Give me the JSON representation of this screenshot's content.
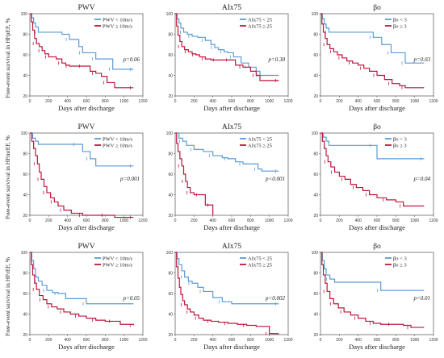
{
  "colors": {
    "blue": "#5b9bd5",
    "red": "#c0143c",
    "axis": "#666666"
  },
  "row_labels": [
    "Free-event survival in HFpEF, %",
    "Free-event survival in HFmrEF, %",
    "Free-event survival in HFrEF, %"
  ],
  "chart_data": [
    {
      "type": "line",
      "title": "PWV",
      "xlabel": "Days after discharge",
      "xlim": [
        0,
        1200
      ],
      "ylim": [
        20,
        100
      ],
      "xticks": [
        "0",
        "200",
        "400",
        "600",
        "800",
        "1000",
        "1200"
      ],
      "yticks": [
        "20",
        "40",
        "60",
        "80",
        "100"
      ],
      "legend": [
        "PWV < 10m/s",
        "PWV ≥ 10m/s"
      ],
      "pvalue": "p=0.06",
      "series": [
        {
          "name": "PWV < 10m/s",
          "color": "#5b9bd5",
          "x": [
            0,
            20,
            40,
            60,
            90,
            340,
            420,
            520,
            560,
            600,
            700,
            800,
            880,
            900,
            1100
          ],
          "y": [
            100,
            96,
            91,
            87,
            82,
            80,
            75,
            68,
            62,
            62,
            56,
            56,
            46,
            46,
            46
          ]
        },
        {
          "name": "PWV ≥ 10m/s",
          "color": "#c0143c",
          "x": [
            0,
            15,
            30,
            50,
            70,
            100,
            130,
            160,
            200,
            280,
            340,
            380,
            420,
            500,
            560,
            640,
            700,
            760,
            820,
            900,
            1100
          ],
          "y": [
            100,
            92,
            84,
            76,
            71,
            68,
            64,
            61,
            58,
            56,
            52,
            50,
            49,
            49,
            49,
            44,
            42,
            39,
            33,
            28,
            28
          ]
        }
      ]
    },
    {
      "type": "line",
      "title": "AIx75",
      "xlabel": "Days after discharge",
      "xlim": [
        0,
        1200
      ],
      "ylim": [
        20,
        100
      ],
      "xticks": [
        "0",
        "200",
        "400",
        "600",
        "800",
        "1000",
        "1200"
      ],
      "yticks": [
        "20",
        "40",
        "60",
        "80",
        "100"
      ],
      "legend": [
        "AIx75 < 25",
        "AIx75 ≥ 25"
      ],
      "pvalue": "p=0.38",
      "series": [
        {
          "name": "AIx75 < 25",
          "color": "#5b9bd5",
          "x": [
            0,
            20,
            40,
            60,
            90,
            130,
            180,
            240,
            320,
            380,
            420,
            460,
            520,
            560,
            620,
            700,
            780,
            860,
            900,
            1100
          ],
          "y": [
            100,
            95,
            91,
            86,
            82,
            80,
            78,
            77,
            74,
            70,
            67,
            65,
            63,
            62,
            58,
            52,
            48,
            44,
            40,
            40
          ]
        },
        {
          "name": "AIx75 ≥ 25",
          "color": "#c0143c",
          "x": [
            0,
            15,
            30,
            50,
            70,
            100,
            140,
            180,
            220,
            260,
            320,
            380,
            440,
            500,
            580,
            640,
            720,
            800,
            860,
            900,
            1100
          ],
          "y": [
            100,
            88,
            79,
            73,
            68,
            65,
            63,
            61,
            60,
            58,
            56,
            55,
            55,
            55,
            55,
            50,
            48,
            44,
            40,
            35,
            35
          ]
        }
      ]
    },
    {
      "type": "line",
      "title": "βo",
      "xlabel": "Days after discharge",
      "xlim": [
        0,
        1200
      ],
      "ylim": [
        20,
        100
      ],
      "xticks": [
        "0",
        "200",
        "400",
        "600",
        "800",
        "1000",
        "1200"
      ],
      "yticks": [
        "20",
        "40",
        "60",
        "80",
        "100"
      ],
      "legend": [
        "βo < 3",
        "βo ≥ 3"
      ],
      "pvalue": "p=0.03",
      "series": [
        {
          "name": "βo < 3",
          "color": "#5b9bd5",
          "x": [
            0,
            20,
            40,
            60,
            90,
            500,
            560,
            650,
            750,
            860,
            900,
            1100
          ],
          "y": [
            100,
            95,
            90,
            86,
            82,
            82,
            77,
            70,
            62,
            62,
            52,
            52
          ]
        },
        {
          "name": "βo ≥ 3",
          "color": "#c0143c",
          "x": [
            0,
            15,
            30,
            50,
            70,
            100,
            140,
            180,
            230,
            280,
            340,
            400,
            460,
            520,
            600,
            680,
            760,
            840,
            900,
            1100
          ],
          "y": [
            100,
            90,
            82,
            76,
            70,
            66,
            63,
            60,
            57,
            54,
            52,
            50,
            47,
            44,
            40,
            36,
            32,
            30,
            28,
            28
          ]
        }
      ]
    },
    {
      "type": "line",
      "title": "PWV",
      "xlabel": "Days after discharge",
      "xlim": [
        0,
        1200
      ],
      "ylim": [
        20,
        100
      ],
      "xticks": [
        "0",
        "200",
        "400",
        "600",
        "800",
        "1000",
        "1200"
      ],
      "yticks": [
        "20",
        "40",
        "60",
        "80",
        "100"
      ],
      "legend": [
        "PWV < 10m/s",
        "PWV ≥ 10m/s"
      ],
      "pvalue": "p=0.001",
      "series": [
        {
          "name": "PWV < 10m/s",
          "color": "#5b9bd5",
          "x": [
            0,
            30,
            60,
            90,
            500,
            560,
            640,
            700,
            1100
          ],
          "y": [
            100,
            95,
            92,
            89,
            89,
            82,
            75,
            68,
            68
          ]
        },
        {
          "name": "PWV ≥ 10m/s",
          "color": "#c0143c",
          "x": [
            0,
            20,
            40,
            60,
            80,
            100,
            120,
            150,
            180,
            220,
            260,
            300,
            360,
            440,
            560,
            680,
            800,
            900,
            1100
          ],
          "y": [
            100,
            92,
            85,
            78,
            70,
            62,
            55,
            48,
            42,
            37,
            33,
            29,
            25,
            22,
            20,
            20,
            20,
            18,
            18
          ]
        }
      ]
    },
    {
      "type": "line",
      "title": "AIx75",
      "xlabel": "Days after discharge",
      "xlim": [
        0,
        1200
      ],
      "ylim": [
        20,
        100
      ],
      "xticks": [
        "0",
        "200",
        "400",
        "600",
        "800",
        "1000",
        "1200"
      ],
      "yticks": [
        "20",
        "40",
        "60",
        "80",
        "100"
      ],
      "legend": [
        "AIx75 < 25",
        "AIx75 ≥ 25"
      ],
      "pvalue": "p<0.001",
      "series": [
        {
          "name": "AIx75 < 25",
          "color": "#5b9bd5",
          "x": [
            0,
            40,
            80,
            120,
            200,
            300,
            400,
            500,
            560,
            640,
            720,
            800,
            880,
            920,
            1100
          ],
          "y": [
            100,
            95,
            92,
            88,
            84,
            82,
            78,
            76,
            75,
            72,
            70,
            70,
            65,
            63,
            63
          ]
        },
        {
          "name": "AIx75 ≥ 25",
          "color": "#c0143c",
          "x": [
            0,
            15,
            30,
            50,
            70,
            90,
            110,
            130,
            160,
            200,
            260,
            320,
            380,
            400
          ],
          "y": [
            100,
            90,
            82,
            75,
            68,
            60,
            53,
            47,
            42,
            40,
            40,
            30,
            30,
            20
          ]
        }
      ]
    },
    {
      "type": "line",
      "title": "βo",
      "xlabel": "Days after discharge",
      "xlim": [
        0,
        1200
      ],
      "ylim": [
        20,
        100
      ],
      "xticks": [
        "0",
        "200",
        "400",
        "600",
        "800",
        "1000",
        "1200"
      ],
      "yticks": [
        "20",
        "40",
        "60",
        "80",
        "100"
      ],
      "legend": [
        "βo < 3",
        "βo ≥ 3"
      ],
      "pvalue": "p=0.04",
      "series": [
        {
          "name": "βo < 3",
          "color": "#5b9bd5",
          "x": [
            0,
            30,
            60,
            90,
            560,
            600,
            1100
          ],
          "y": [
            100,
            96,
            92,
            88,
            88,
            75,
            75
          ]
        },
        {
          "name": "βo ≥ 3",
          "color": "#c0143c",
          "x": [
            0,
            20,
            40,
            60,
            80,
            110,
            150,
            200,
            260,
            320,
            380,
            450,
            520,
            600,
            700,
            800,
            880,
            1100
          ],
          "y": [
            100,
            92,
            85,
            78,
            72,
            67,
            62,
            58,
            55,
            50,
            47,
            44,
            40,
            37,
            35,
            33,
            29,
            29
          ]
        }
      ]
    },
    {
      "type": "line",
      "title": "PWV",
      "xlabel": "Days after discharge",
      "xlim": [
        0,
        1200
      ],
      "ylim": [
        20,
        100
      ],
      "xticks": [
        "0",
        "200",
        "400",
        "600",
        "800",
        "1000",
        "1200"
      ],
      "yticks": [
        "20",
        "40",
        "60",
        "80",
        "100"
      ],
      "legend": [
        "PWV < 10m/s",
        "PWV ≥ 10m/s"
      ],
      "pvalue": "p=0.05",
      "series": [
        {
          "name": "PWV < 10m/s",
          "color": "#5b9bd5",
          "x": [
            0,
            20,
            40,
            60,
            90,
            130,
            180,
            240,
            300,
            380,
            600,
            1100
          ],
          "y": [
            100,
            92,
            84,
            76,
            72,
            68,
            63,
            61,
            60,
            55,
            50,
            50
          ]
        },
        {
          "name": "PWV ≥ 10m/s",
          "color": "#c0143c",
          "x": [
            0,
            15,
            30,
            50,
            70,
            100,
            140,
            180,
            230,
            290,
            360,
            430,
            520,
            600,
            700,
            800,
            880,
            960,
            1100
          ],
          "y": [
            100,
            88,
            78,
            70,
            64,
            58,
            54,
            50,
            47,
            45,
            42,
            40,
            38,
            36,
            34,
            33,
            33,
            30,
            29
          ]
        }
      ]
    },
    {
      "type": "line",
      "title": "AIx75",
      "xlabel": "Days after discharge",
      "xlim": [
        0,
        1200
      ],
      "ylim": [
        20,
        100
      ],
      "xticks": [
        "0",
        "200",
        "400",
        "600",
        "800",
        "1000",
        "1200"
      ],
      "yticks": [
        "20",
        "40",
        "60",
        "80",
        "100"
      ],
      "legend": [
        "AIx75 < 25",
        "AIx75 ≥ 25"
      ],
      "pvalue": "p=0.002",
      "series": [
        {
          "name": "AIx75 < 25",
          "color": "#5b9bd5",
          "x": [
            0,
            20,
            40,
            70,
            100,
            140,
            180,
            240,
            300,
            400,
            500,
            600,
            1100
          ],
          "y": [
            100,
            94,
            88,
            82,
            76,
            72,
            70,
            66,
            62,
            56,
            52,
            50,
            50
          ]
        },
        {
          "name": "AIx75 ≥ 25",
          "color": "#c0143c",
          "x": [
            0,
            15,
            30,
            45,
            60,
            80,
            100,
            130,
            160,
            200,
            250,
            300,
            380,
            460,
            560,
            660,
            760,
            860,
            1000,
            1100
          ],
          "y": [
            100,
            86,
            75,
            66,
            59,
            53,
            49,
            45,
            42,
            39,
            36,
            34,
            33,
            32,
            31,
            30,
            29,
            28,
            21,
            21
          ]
        }
      ]
    },
    {
      "type": "line",
      "title": "βo",
      "xlabel": "Days after discharge",
      "xlim": [
        0,
        1200
      ],
      "ylim": [
        20,
        100
      ],
      "xticks": [
        "0",
        "200",
        "400",
        "600",
        "800",
        "1000",
        "1200"
      ],
      "yticks": [
        "20",
        "40",
        "60",
        "80",
        "100"
      ],
      "legend": [
        "βo < 3",
        "βo ≥ 3"
      ],
      "pvalue": "p=0.01",
      "series": [
        {
          "name": "βo < 3",
          "color": "#5b9bd5",
          "x": [
            0,
            20,
            40,
            60,
            100,
            150,
            640,
            1100
          ],
          "y": [
            100,
            92,
            84,
            78,
            74,
            71,
            63,
            63
          ]
        },
        {
          "name": "βo ≥ 3",
          "color": "#c0143c",
          "x": [
            0,
            15,
            30,
            50,
            70,
            100,
            140,
            190,
            250,
            320,
            400,
            480,
            560,
            640,
            760,
            880,
            960,
            1100
          ],
          "y": [
            100,
            88,
            78,
            70,
            62,
            55,
            50,
            46,
            42,
            39,
            36,
            33,
            31,
            30,
            30,
            29,
            27,
            27
          ]
        }
      ]
    }
  ]
}
